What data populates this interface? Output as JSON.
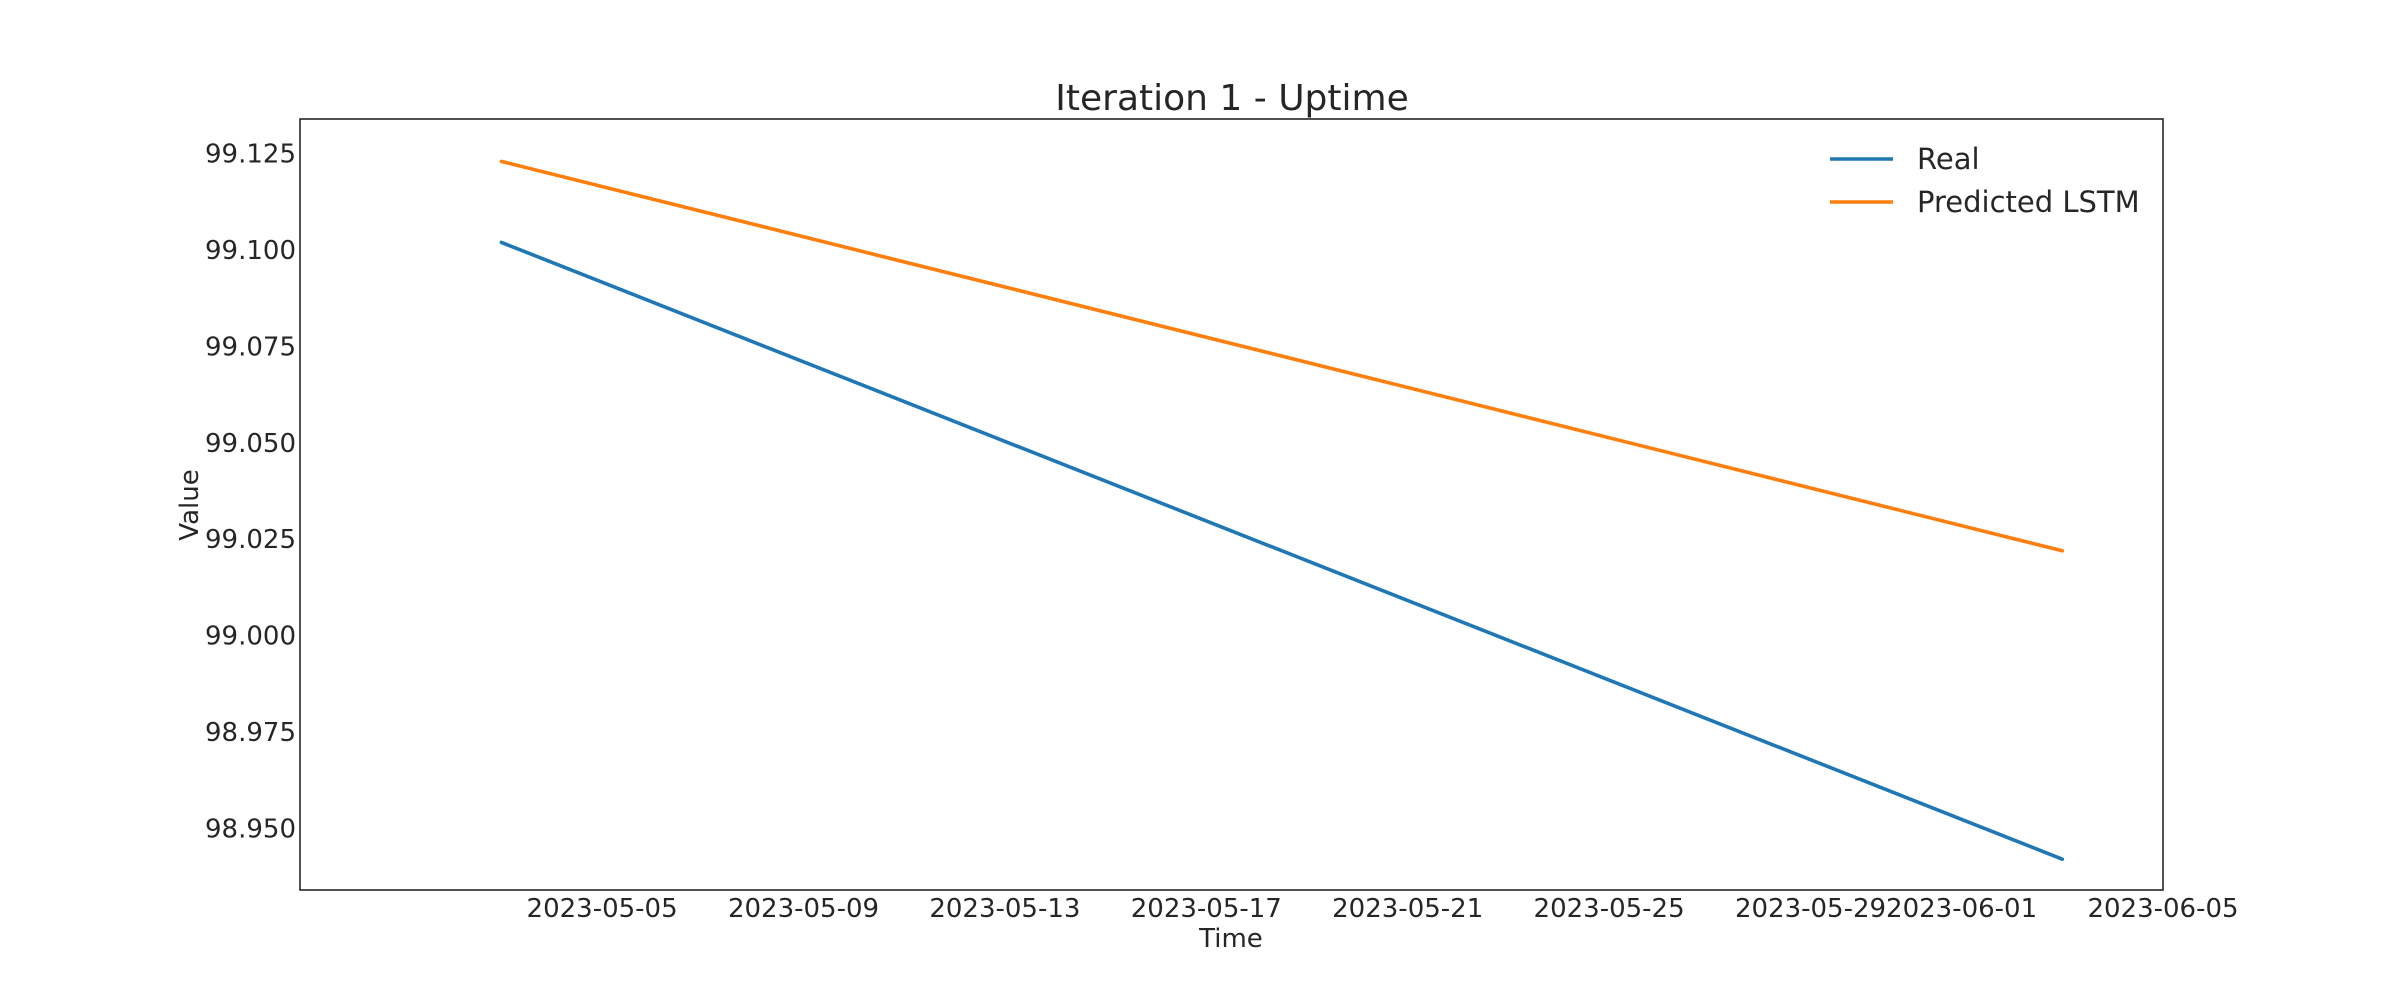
{
  "chart_data": {
    "type": "line",
    "title": "Iteration 1 - Uptime",
    "xlabel": "Time",
    "ylabel": "Value",
    "x_start": "2023-05-03",
    "x_end": "2023-06-03",
    "xlim": [
      "2023-04-29",
      "2023-06-05"
    ],
    "ylim": [
      98.934,
      99.134
    ],
    "x_ticks": [
      "2023-05-05",
      "2023-05-09",
      "2023-05-13",
      "2023-05-17",
      "2023-05-21",
      "2023-05-25",
      "2023-05-29",
      "2023-06-01",
      "2023-06-05"
    ],
    "y_ticks": [
      "98.950",
      "98.975",
      "99.000",
      "99.025",
      "99.050",
      "99.075",
      "99.100",
      "99.125"
    ],
    "grid": false,
    "legend_position": "top-right",
    "series": [
      {
        "name": "Real",
        "color": "#1f77b4",
        "y_start": 99.102,
        "y_end": 98.942
      },
      {
        "name": "Predicted LSTM",
        "color": "#ff7f0e",
        "y_start": 99.123,
        "y_end": 99.022
      }
    ]
  }
}
